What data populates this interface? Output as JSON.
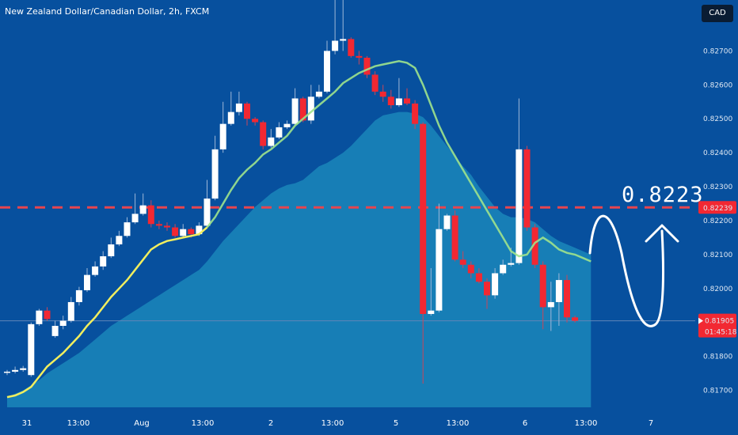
{
  "header": {
    "title": "New Zealand Dollar/Canadian Dollar, 2h, FXCM",
    "currency_button": "CAD"
  },
  "annotations": {
    "target_text": "0.8223"
  },
  "colors": {
    "background": "#07509e",
    "up_candle": "#ffffff",
    "down_candle": "#f22832",
    "ma_line": "#f1ee5e",
    "area_fill": "#1a83b8",
    "level_line": "#e6454f",
    "label_red": "#f22832"
  },
  "chart_data": {
    "type": "candlestick",
    "y_axis": {
      "ylim": [
        0.8165,
        0.8285
      ],
      "ticks": [
        "0.82700",
        "0.82600",
        "0.82500",
        "0.82400",
        "0.82300",
        "0.82200",
        "0.82100",
        "0.82000",
        "0.81800",
        "0.81700"
      ],
      "labels": [
        {
          "text": "0.82239",
          "value": 0.82239
        },
        {
          "text": "0.81905",
          "value": 0.81905
        },
        {
          "text": "01:45:18",
          "value": 0.81895
        }
      ]
    },
    "x_axis": {
      "ticks": [
        "31",
        "13:00",
        "Aug",
        "13:00",
        "2",
        "13:00",
        "5",
        "13:00",
        "6",
        "13:00",
        "7"
      ]
    },
    "horizontal_lines": [
      {
        "value": 0.82239,
        "style": "dashed"
      },
      {
        "value": 0.81905,
        "style": "solid"
      }
    ],
    "candles": [
      [
        0.81755,
        0.81755,
        0.8176,
        0.81745
      ],
      [
        0.81755,
        0.8176,
        0.8177,
        0.8175
      ],
      [
        0.8176,
        0.81765,
        0.81772,
        0.81755
      ],
      [
        0.81745,
        0.81895,
        0.819,
        0.8174
      ],
      [
        0.81895,
        0.81935,
        0.8194,
        0.8189
      ],
      [
        0.81935,
        0.8191,
        0.81945,
        0.81905
      ],
      [
        0.8186,
        0.8189,
        0.81905,
        0.81855
      ],
      [
        0.8189,
        0.81905,
        0.8192,
        0.8188
      ],
      [
        0.81905,
        0.8196,
        0.81975,
        0.819
      ],
      [
        0.8196,
        0.81995,
        0.82005,
        0.8195
      ],
      [
        0.81995,
        0.8204,
        0.8206,
        0.8199
      ],
      [
        0.8204,
        0.82065,
        0.8208,
        0.82035
      ],
      [
        0.82065,
        0.82095,
        0.8211,
        0.82055
      ],
      [
        0.82095,
        0.8213,
        0.8215,
        0.8209
      ],
      [
        0.8213,
        0.82155,
        0.8217,
        0.82125
      ],
      [
        0.82155,
        0.82195,
        0.8221,
        0.8215
      ],
      [
        0.82195,
        0.8222,
        0.8228,
        0.8219
      ],
      [
        0.8222,
        0.82245,
        0.8228,
        0.82215
      ],
      [
        0.82245,
        0.8219,
        0.8226,
        0.8218
      ],
      [
        0.8219,
        0.82185,
        0.822,
        0.82175
      ],
      [
        0.82185,
        0.8218,
        0.82195,
        0.8217
      ],
      [
        0.8218,
        0.82155,
        0.8219,
        0.8215
      ],
      [
        0.82155,
        0.82175,
        0.8219,
        0.8215
      ],
      [
        0.82175,
        0.8216,
        0.8218,
        0.8215
      ],
      [
        0.8216,
        0.82185,
        0.82195,
        0.82155
      ],
      [
        0.82185,
        0.82265,
        0.8232,
        0.8218
      ],
      [
        0.82265,
        0.8241,
        0.8245,
        0.8226
      ],
      [
        0.8241,
        0.82485,
        0.8255,
        0.824
      ],
      [
        0.82485,
        0.8252,
        0.8258,
        0.8248
      ],
      [
        0.8252,
        0.82545,
        0.8258,
        0.8251
      ],
      [
        0.82545,
        0.825,
        0.8255,
        0.8248
      ],
      [
        0.825,
        0.8249,
        0.82505,
        0.8248
      ],
      [
        0.8249,
        0.8242,
        0.82495,
        0.8241
      ],
      [
        0.8242,
        0.82445,
        0.8247,
        0.82415
      ],
      [
        0.82445,
        0.82475,
        0.8249,
        0.8244
      ],
      [
        0.82475,
        0.82485,
        0.82495,
        0.8247
      ],
      [
        0.82485,
        0.8256,
        0.8259,
        0.8248
      ],
      [
        0.8256,
        0.82495,
        0.82565,
        0.8249
      ],
      [
        0.82495,
        0.82565,
        0.826,
        0.82485
      ],
      [
        0.82565,
        0.8258,
        0.826,
        0.8256
      ],
      [
        0.8258,
        0.827,
        0.8273,
        0.82575
      ],
      [
        0.827,
        0.8273,
        0.8285,
        0.8269
      ],
      [
        0.8273,
        0.82735,
        0.8286,
        0.827
      ],
      [
        0.82735,
        0.82685,
        0.8274,
        0.8268
      ],
      [
        0.82685,
        0.8268,
        0.827,
        0.8266
      ],
      [
        0.8268,
        0.8263,
        0.82685,
        0.8262
      ],
      [
        0.8263,
        0.8258,
        0.8264,
        0.8257
      ],
      [
        0.8258,
        0.82565,
        0.826,
        0.8255
      ],
      [
        0.82565,
        0.8254,
        0.82585,
        0.8253
      ],
      [
        0.8254,
        0.8256,
        0.8262,
        0.82535
      ],
      [
        0.8256,
        0.82545,
        0.8259,
        0.8254
      ],
      [
        0.82545,
        0.82485,
        0.82555,
        0.8247
      ],
      [
        0.82485,
        0.81925,
        0.8249,
        0.8172
      ],
      [
        0.81925,
        0.81935,
        0.8206,
        0.8192
      ],
      [
        0.81935,
        0.82175,
        0.8225,
        0.8193
      ],
      [
        0.82175,
        0.82215,
        0.8222,
        0.8217
      ],
      [
        0.82215,
        0.82085,
        0.8223,
        0.8208
      ],
      [
        0.82085,
        0.8207,
        0.8211,
        0.8206
      ],
      [
        0.8207,
        0.82045,
        0.8208,
        0.8203
      ],
      [
        0.82045,
        0.8202,
        0.8206,
        0.82015
      ],
      [
        0.8202,
        0.8198,
        0.8203,
        0.8194
      ],
      [
        0.8198,
        0.82045,
        0.8206,
        0.8197
      ],
      [
        0.82045,
        0.8207,
        0.82085,
        0.8204
      ],
      [
        0.8207,
        0.82075,
        0.8212,
        0.82065
      ],
      [
        0.82075,
        0.8241,
        0.8256,
        0.8207
      ],
      [
        0.8241,
        0.8218,
        0.8242,
        0.8217
      ],
      [
        0.8218,
        0.8207,
        0.8219,
        0.8206
      ],
      [
        0.8207,
        0.81945,
        0.8208,
        0.8188
      ],
      [
        0.81945,
        0.8196,
        0.8202,
        0.81875
      ],
      [
        0.8196,
        0.82025,
        0.82045,
        0.8189
      ],
      [
        0.82025,
        0.81915,
        0.8204,
        0.819
      ],
      [
        0.81915,
        0.81905,
        0.8192,
        0.819
      ]
    ],
    "moving_average": [
      0.8168,
      0.81685,
      0.81695,
      0.8171,
      0.8174,
      0.8177,
      0.8179,
      0.8181,
      0.81835,
      0.8186,
      0.8189,
      0.81915,
      0.81945,
      0.81975,
      0.82,
      0.82025,
      0.82055,
      0.82085,
      0.82115,
      0.8213,
      0.8214,
      0.82145,
      0.8215,
      0.82155,
      0.8216,
      0.8218,
      0.8221,
      0.8225,
      0.8229,
      0.82325,
      0.8235,
      0.8237,
      0.82395,
      0.8241,
      0.8243,
      0.8245,
      0.8248,
      0.825,
      0.8252,
      0.8254,
      0.8256,
      0.8258,
      0.82605,
      0.8262,
      0.82635,
      0.82645,
      0.82655,
      0.8266,
      0.82665,
      0.8267,
      0.82665,
      0.8265,
      0.826,
      0.8254,
      0.8248,
      0.8243,
      0.8239,
      0.8235,
      0.8231,
      0.8227,
      0.8223,
      0.8219,
      0.8215,
      0.8211,
      0.82095,
      0.821,
      0.82135,
      0.8215,
      0.82135,
      0.82115,
      0.82105,
      0.821,
      0.8209,
      0.8208
    ],
    "ma_dark_points": 25,
    "area_band": [
      0.8168,
      0.8169,
      0.817,
      0.81715,
      0.8173,
      0.8175,
      0.81765,
      0.8178,
      0.81795,
      0.8181,
      0.8183,
      0.8185,
      0.8187,
      0.8189,
      0.81905,
      0.8192,
      0.81935,
      0.8195,
      0.81965,
      0.8198,
      0.81995,
      0.8201,
      0.82025,
      0.8204,
      0.82055,
      0.8208,
      0.8211,
      0.8214,
      0.82165,
      0.8219,
      0.82215,
      0.8224,
      0.8226,
      0.8228,
      0.82295,
      0.82305,
      0.8231,
      0.8232,
      0.8234,
      0.8236,
      0.8237,
      0.82385,
      0.824,
      0.8242,
      0.82445,
      0.8247,
      0.82495,
      0.8251,
      0.82515,
      0.8252,
      0.8252,
      0.82515,
      0.82505,
      0.8248,
      0.8245,
      0.8242,
      0.8239,
      0.8236,
      0.82335,
      0.823,
      0.8227,
      0.8224,
      0.8222,
      0.8221,
      0.8221,
      0.82205,
      0.82195,
      0.82175,
      0.82155,
      0.8214,
      0.8213,
      0.8212,
      0.8211,
      0.821
    ]
  }
}
